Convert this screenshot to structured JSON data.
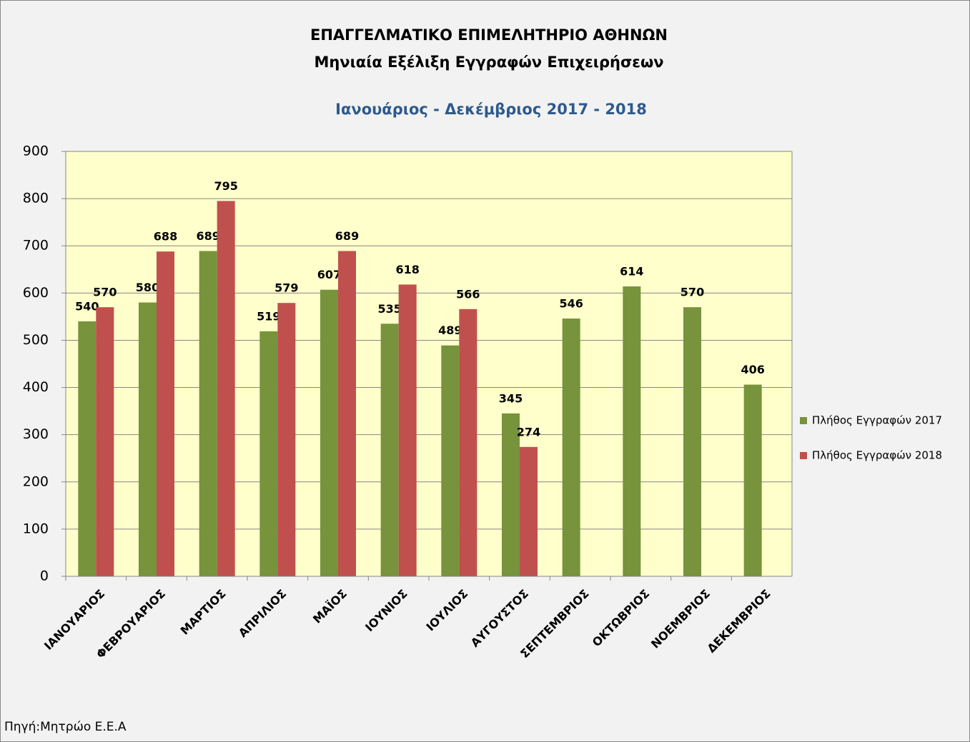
{
  "chart_data": {
    "type": "bar",
    "title": "ΕΠΑΓΓΕΛΜΑΤΙΚΟ ΕΠΙΜΕΛΗΤΗΡΙΟ ΑΘΗΝΩΝ",
    "subtitle": "Μηνιαία Εξέλιξη Εγγραφών Επιχειρήσεων",
    "period": "Ιανουάριος - Δεκέμβριος 2017 - 2018",
    "source": "Πηγή:Μητρώο Ε.Ε.Α",
    "categories": [
      "ΙΑΝΟΥΑΡΙΟΣ",
      "ΦΕΒΡΟΥΑΡΙΟΣ",
      "ΜΑΡΤΙΟΣ",
      "ΑΠΡΙΛΙΟΣ",
      "ΜΑΪΟΣ",
      "ΙΟΥΝΙΟΣ",
      "ΙΟΥΛΙΟΣ",
      "ΑΥΓΟΥΣΤΟΣ",
      "ΣΕΠΤΕΜΒΡΙΟΣ",
      "ΟΚΤΩΒΡΙΟΣ",
      "ΝΟΕΜΒΡΙΟΣ",
      "ΔΕΚΕΜΒΡΙΟΣ"
    ],
    "series": [
      {
        "name": "Πλήθος Εγγραφών 2017",
        "color": "#77933c",
        "values": [
          540,
          580,
          689,
          519,
          607,
          535,
          489,
          345,
          546,
          614,
          570,
          406
        ]
      },
      {
        "name": "Πλήθος Εγγραφών 2018",
        "color": "#c0504d",
        "values": [
          570,
          688,
          795,
          579,
          689,
          618,
          566,
          274,
          null,
          null,
          null,
          null
        ]
      }
    ],
    "ylim": [
      0,
      900
    ],
    "yticks": [
      0,
      100,
      200,
      300,
      400,
      500,
      600,
      700,
      800,
      900
    ],
    "grid": true,
    "legend": "right",
    "plot_background": "#ffffcc"
  }
}
